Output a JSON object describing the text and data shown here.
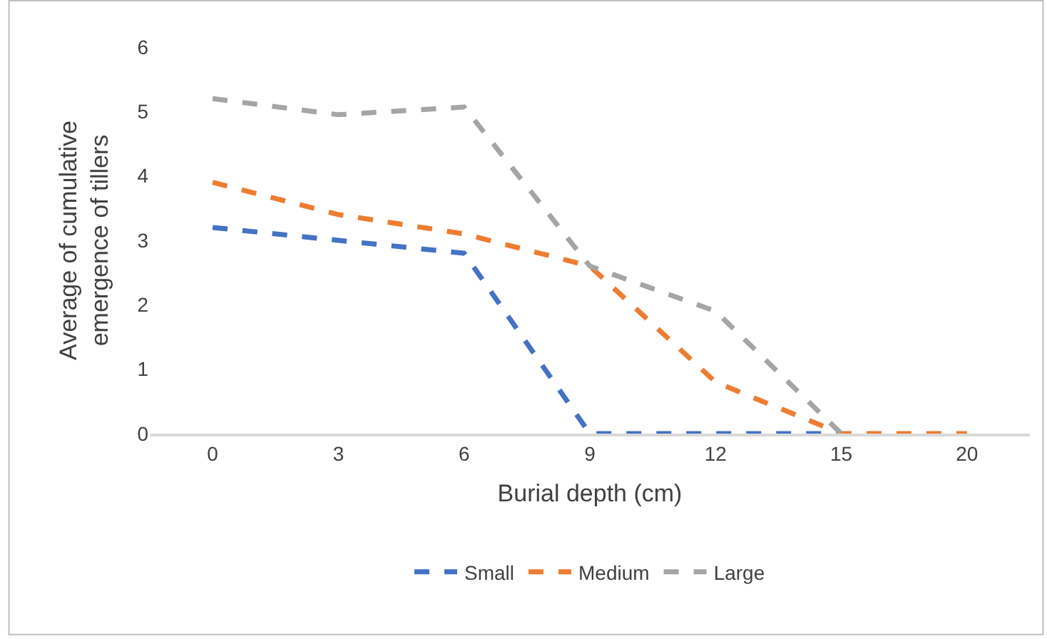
{
  "chart_data": {
    "type": "line",
    "xlabel": "Burial depth (cm)",
    "ylabel": "Average of cumulative emergence of tillers",
    "categories": [
      "0",
      "3",
      "6",
      "9",
      "12",
      "15",
      "20"
    ],
    "series": [
      {
        "name": "Small",
        "color": "#4472c4",
        "values": [
          3.2,
          3.0,
          2.8,
          0,
          0,
          0,
          null
        ]
      },
      {
        "name": "Medium",
        "color": "#ed7d31",
        "values": [
          3.9,
          3.4,
          3.1,
          2.6,
          0.8,
          0,
          0
        ]
      },
      {
        "name": "Large",
        "color": "#a5a5a5",
        "values": [
          5.2,
          4.95,
          5.07,
          2.6,
          1.9,
          0,
          null
        ]
      }
    ],
    "ylim": [
      0,
      6
    ],
    "yticks": [
      0,
      1,
      2,
      3,
      4,
      5,
      6
    ],
    "legend": "bottom",
    "line_style": "dashed",
    "marker": "none"
  }
}
